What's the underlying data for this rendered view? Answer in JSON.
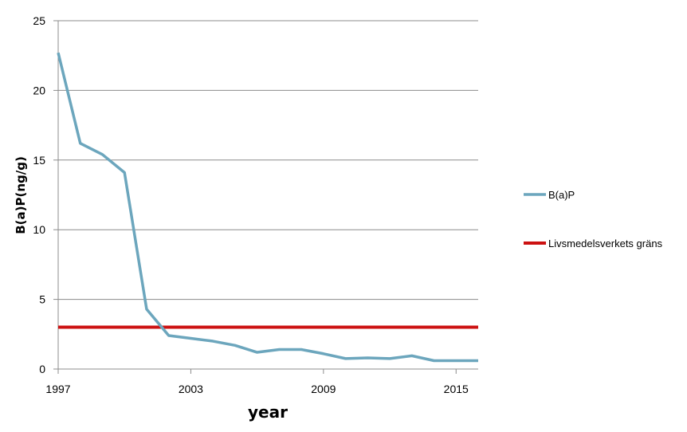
{
  "chart_data": {
    "type": "line",
    "title": "",
    "xlabel": "year",
    "ylabel": "B(a)P(ng/g)",
    "xlim": [
      1997,
      2016
    ],
    "ylim": [
      0,
      25
    ],
    "x_ticks": [
      1997,
      2003,
      2009,
      2015
    ],
    "y_ticks": [
      0,
      5,
      10,
      15,
      20,
      25
    ],
    "grid": "horizontal",
    "legend_position": "right",
    "series": [
      {
        "name": "B(a)P",
        "color": "#6ca6bd",
        "x": [
          1997,
          1998,
          1999,
          2000,
          2001,
          2002,
          2003,
          2004,
          2005,
          2006,
          2007,
          2008,
          2009,
          2010,
          2011,
          2012,
          2013,
          2014,
          2015,
          2016
        ],
        "y": [
          22.7,
          16.2,
          15.4,
          14.1,
          4.3,
          2.4,
          2.2,
          2.0,
          1.7,
          1.2,
          1.4,
          1.4,
          1.1,
          0.75,
          0.8,
          0.75,
          0.95,
          0.6,
          0.6,
          0.6
        ]
      },
      {
        "name": "Livsmedelsverkets gräns",
        "color": "#cc1111",
        "x": [
          1997,
          2016
        ],
        "y": [
          3,
          3
        ]
      }
    ]
  }
}
